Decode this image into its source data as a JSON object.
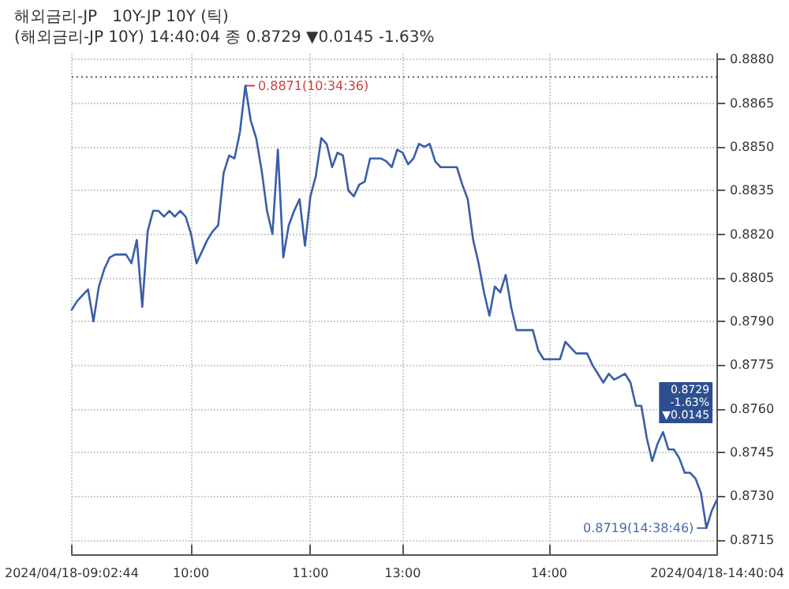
{
  "chart_data": {
    "type": "line",
    "title": "해외금리-JP   10Y-JP 10Y (틱)",
    "subtitle": "(해외금리-JP 10Y) 14:40:04 종 0.8729 ▼0.0145 -1.63%",
    "categories": [
      "2024/04/18-09:02:44",
      null,
      null,
      null,
      null,
      null,
      null,
      null,
      null,
      null,
      null,
      null,
      null,
      null,
      null,
      null,
      null,
      null,
      null,
      null,
      null,
      null,
      "10:00",
      null,
      null,
      null,
      null,
      null,
      null,
      null,
      null,
      null,
      null,
      null,
      null,
      null,
      null,
      null,
      null,
      null,
      null,
      null,
      null,
      null,
      "11:00",
      null,
      null,
      null,
      null,
      null,
      null,
      null,
      null,
      null,
      null,
      null,
      null,
      null,
      null,
      null,
      null,
      "13:00",
      null,
      null,
      null,
      null,
      null,
      null,
      null,
      null,
      null,
      null,
      null,
      null,
      null,
      null,
      null,
      null,
      null,
      null,
      null,
      null,
      null,
      null,
      null,
      null,
      null,
      null,
      "14:00",
      null,
      null,
      null,
      null,
      null,
      null,
      null,
      null,
      null,
      null,
      null,
      null,
      null,
      null,
      null,
      null,
      null,
      null,
      null,
      null,
      null,
      null,
      null,
      null,
      null,
      null,
      null,
      null,
      null,
      null,
      "2024/04/18-14:40:04"
    ],
    "series": [
      {
        "color": "#3a5ea8",
        "values": [
          0.8794,
          0.8797,
          0.8799,
          0.8801,
          0.879,
          0.8802,
          0.8808,
          0.8812,
          0.8813,
          0.8813,
          0.8813,
          0.881,
          0.8818,
          0.8795,
          0.8821,
          0.8828,
          0.8828,
          0.8826,
          0.8828,
          0.8826,
          0.8828,
          0.8826,
          0.882,
          0.881,
          0.8814,
          0.8818,
          0.8821,
          0.8823,
          0.8841,
          0.8847,
          0.8846,
          0.8855,
          0.8871,
          0.8859,
          0.8853,
          0.8842,
          0.8828,
          0.882,
          0.8849,
          0.8812,
          0.8823,
          0.8828,
          0.8832,
          0.8816,
          0.8833,
          0.884,
          0.8853,
          0.8851,
          0.8843,
          0.8848,
          0.8847,
          0.8835,
          0.8833,
          0.8837,
          0.8838,
          0.8846,
          0.8846,
          0.8846,
          0.8845,
          0.8843,
          0.8849,
          0.8848,
          0.8844,
          0.8846,
          0.8851,
          0.885,
          0.8851,
          0.8845,
          0.8843,
          0.8843,
          0.8843,
          0.8843,
          0.8837,
          0.8832,
          0.8818,
          0.881,
          0.88,
          0.8792,
          0.8802,
          0.88,
          0.8806,
          0.8795,
          0.8787,
          0.8787,
          0.8787,
          0.8787,
          0.878,
          0.8777,
          0.8777,
          0.8777,
          0.8777,
          0.8783,
          0.8781,
          0.8779,
          0.8779,
          0.8779,
          0.8775,
          0.8772,
          0.8769,
          0.8772,
          0.877,
          0.8771,
          0.8772,
          0.8769,
          0.8761,
          0.8761,
          0.875,
          0.8742,
          0.8748,
          0.8752,
          0.8746,
          0.8746,
          0.8743,
          0.8738,
          0.8738,
          0.8736,
          0.8731,
          0.8719,
          0.8725,
          0.8729
        ]
      }
    ],
    "ylim": [
      0.871,
      0.8882
    ],
    "yticks": [
      0.8715,
      {
        "value": 0.873,
        "label": "0.8730"
      },
      0.8745,
      {
        "value": 0.876,
        "label": "0.8760"
      },
      0.8775,
      {
        "value": 0.879,
        "label": "0.8790"
      },
      0.8805,
      {
        "value": 0.882,
        "label": "0.8820"
      },
      0.8835,
      {
        "value": 0.885,
        "label": "0.8850"
      },
      0.8865,
      {
        "value": 0.888,
        "label": "0.8880"
      }
    ],
    "ref_lines": [
      {
        "axis": "y",
        "value": 0.8874,
        "color": "#555555",
        "line_style": "dotted"
      }
    ],
    "annotations": [
      "0.8871(10:34:36)",
      "0.8719(14:38:46)",
      "0.8729 -1.63% ▼0.0145"
    ],
    "grid": true,
    "marker": "none",
    "line_style": "solid"
  }
}
